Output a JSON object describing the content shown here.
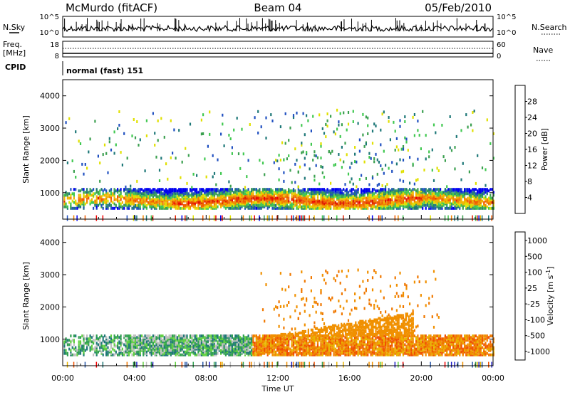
{
  "header": {
    "left": "McMurdo (fitACF)",
    "center": "Beam 04",
    "right": "05/Feb/2010"
  },
  "ancillary": {
    "nsky_label": "N.Sky",
    "nsearch_label": "N.Search",
    "nsky_ticks": [
      "10^5",
      "10^0"
    ],
    "nsearch_ticks": [
      "10^5",
      "10^0"
    ],
    "freq_label": "Freq.",
    "freq_unit": "[MHz]",
    "freq_ticks": [
      "18",
      "8"
    ],
    "nave_label": "Nave",
    "nave_ticks": [
      "60",
      "0"
    ],
    "cpid_label": "CPID",
    "cpid_text": "normal (fast) 151"
  },
  "chart_data": [
    {
      "type": "heatmap",
      "panel": "power",
      "ylabel": "Slant Range [km]",
      "xlabel": "",
      "x_range_hours": [
        0,
        24
      ],
      "ylim": [
        180,
        4500
      ],
      "yticks": [
        1000,
        2000,
        3000,
        4000
      ],
      "colorbar": {
        "label": "Power [dB]",
        "ticks": [
          4,
          8,
          12,
          16,
          20,
          24,
          28
        ],
        "range": [
          0,
          32
        ],
        "colors": [
          "#0000f0",
          "#2050c0",
          "#1e7878",
          "#3ca050",
          "#40c850",
          "#e0e000",
          "#f0b400",
          "#f08200",
          "#f05a00",
          "#e02000",
          "#f00000"
        ]
      },
      "echo_band": {
        "lower_km": 600,
        "upper_km": 1100,
        "peak_power_db": 28
      }
    },
    {
      "type": "heatmap",
      "panel": "velocity",
      "ylabel": "Slant Range [km]",
      "xlabel": "Time UT",
      "x_range_hours": [
        0,
        24
      ],
      "ylim": [
        180,
        4500
      ],
      "yticks": [
        1000,
        2000,
        3000,
        4000
      ],
      "xticks": [
        "00:00",
        "04:00",
        "08:00",
        "12:00",
        "16:00",
        "20:00",
        "00:00"
      ],
      "colorbar": {
        "label": "Velocity [m s^-1]",
        "ticks": [
          "1000",
          "500",
          "100",
          "25",
          "-25",
          "-100",
          "-500",
          "-1000"
        ],
        "colors": [
          "#2020c8",
          "#2858a8",
          "#207878",
          "#30a050",
          "#60d040",
          "#c0c0c0",
          "#e8b400",
          "#f09000",
          "#f07800",
          "#f05000",
          "#f00000"
        ]
      },
      "echo_band": {
        "lower_km": 600,
        "upper_km": 1100,
        "early_hours_sign": "positive",
        "late_hours_sign": "negative"
      }
    }
  ]
}
